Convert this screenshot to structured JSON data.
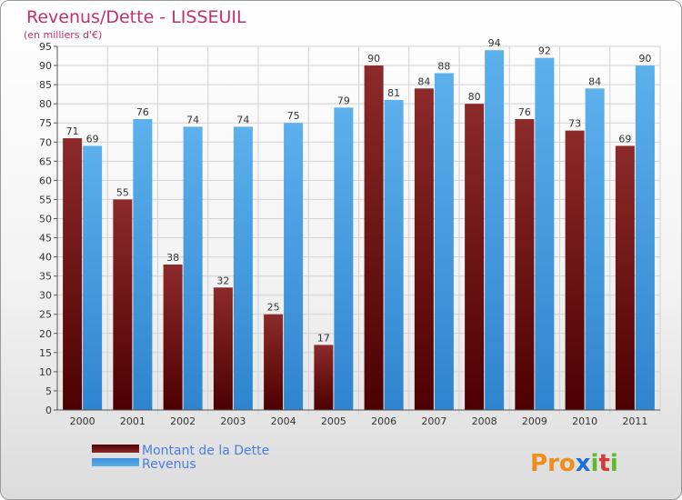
{
  "chart_data": {
    "type": "bar",
    "title": "Revenus/Dette - LISSEUIL",
    "subtitle": "(en milliers d'€)",
    "categories": [
      "2000",
      "2001",
      "2002",
      "2003",
      "2004",
      "2005",
      "2006",
      "2007",
      "2008",
      "2009",
      "2010",
      "2011"
    ],
    "series": [
      {
        "name": "Montant de la Dette",
        "color": "#7a1111",
        "values": [
          71,
          55,
          38,
          32,
          25,
          17,
          90,
          84,
          80,
          76,
          73,
          69
        ]
      },
      {
        "name": "Revenus",
        "color": "#4a9fe0",
        "values": [
          69,
          76,
          74,
          74,
          75,
          79,
          81,
          88,
          94,
          92,
          84,
          90
        ]
      }
    ],
    "ylim": [
      0,
      95
    ],
    "yticks": [
      0,
      5,
      10,
      15,
      20,
      25,
      30,
      35,
      40,
      45,
      50,
      55,
      60,
      65,
      70,
      75,
      80,
      85,
      90,
      95
    ],
    "grid": true,
    "legend_position": "bottom-left"
  },
  "logo": {
    "text": "Proxiti",
    "letters": [
      {
        "ch": "P",
        "color": "#f08c1a"
      },
      {
        "ch": "r",
        "color": "#f08c1a"
      },
      {
        "ch": "o",
        "color": "#f08c1a"
      },
      {
        "ch": "x",
        "color": "#1f6fd6"
      },
      {
        "ch": "i",
        "color": "#5fb82e"
      },
      {
        "ch": "t",
        "color": "#d43a3a"
      },
      {
        "ch": "i",
        "color": "#5fb82e"
      }
    ]
  }
}
